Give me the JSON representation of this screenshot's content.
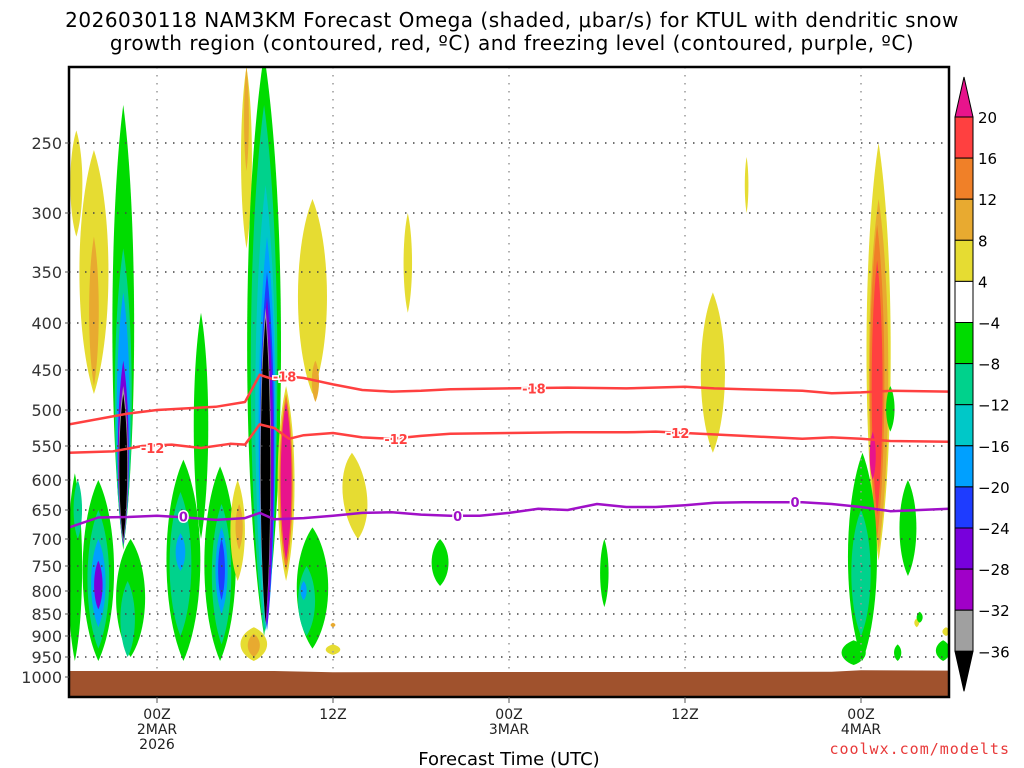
{
  "chart_data": {
    "type": "heatmap",
    "title_line1": "2026030118 NAM3KM Forecast Omega (shaded, μbar/s) for KTUL with dendritic snow",
    "title_line2": "growth region (contoured, red, ºC) and freezing level (contoured, purple, ºC)",
    "xlabel": "Forecast Time (UTC)",
    "ylabel": "",
    "credit": "coolwx.com/modelts",
    "x_range_hours": [
      -6,
      54
    ],
    "x_ticks": [
      {
        "hour": 0,
        "lines": [
          "00Z",
          "2MAR",
          "2026"
        ]
      },
      {
        "hour": 12,
        "lines": [
          "12Z"
        ]
      },
      {
        "hour": 24,
        "lines": [
          "00Z",
          "3MAR"
        ]
      },
      {
        "hour": 36,
        "lines": [
          "12Z"
        ]
      },
      {
        "hour": 48,
        "lines": [
          "00Z",
          "4MAR"
        ]
      }
    ],
    "y_axis": "pressure (hPa), inverted",
    "y_range": [
      190,
      1030
    ],
    "y_ticks": [
      250,
      300,
      350,
      400,
      450,
      500,
      550,
      600,
      650,
      700,
      750,
      800,
      850,
      900,
      950,
      1000
    ],
    "grid": "dotted",
    "colorbar": {
      "levels": [
        20,
        16,
        12,
        8,
        4,
        -4,
        -8,
        -12,
        -16,
        -20,
        -24,
        -28,
        -32,
        -36
      ],
      "bins": [
        {
          "range": ">20",
          "color": "#e8148c"
        },
        {
          "range": "16 to 20",
          "color": "#ff4040"
        },
        {
          "range": "12 to 16",
          "color": "#f08028"
        },
        {
          "range": "8 to 12",
          "color": "#e8aa30"
        },
        {
          "range": "4 to 8",
          "color": "#e6dc32"
        },
        {
          "range": "-4 to 4",
          "color": "#ffffff"
        },
        {
          "range": "-8 to -4",
          "color": "#00dc00"
        },
        {
          "range": "-12 to -8",
          "color": "#00d28c"
        },
        {
          "range": "-16 to -12",
          "color": "#00c8c8"
        },
        {
          "range": "-20 to -16",
          "color": "#00a0ff"
        },
        {
          "range": "-24 to -20",
          "color": "#1e3cff"
        },
        {
          "range": "-28 to -24",
          "color": "#7800dc"
        },
        {
          "range": "-32 to -28",
          "color": "#a000c8"
        },
        {
          "range": "-36 to -32",
          "color": "#a0a0a0"
        },
        {
          "range": "<-36",
          "color": "#000000"
        }
      ]
    },
    "contours": [
      {
        "name": "minus-18C",
        "label": "-18",
        "color": "#ff4040",
        "points": [
          [
            -6,
            520
          ],
          [
            -2,
            505
          ],
          [
            0,
            500
          ],
          [
            2,
            498
          ],
          [
            4,
            496
          ],
          [
            6,
            490
          ],
          [
            7,
            456
          ],
          [
            8,
            462
          ],
          [
            9,
            458
          ],
          [
            10,
            460
          ],
          [
            12,
            468
          ],
          [
            14,
            475
          ],
          [
            16,
            477
          ],
          [
            18,
            476
          ],
          [
            20,
            474
          ],
          [
            24,
            473
          ],
          [
            28,
            472
          ],
          [
            32,
            473
          ],
          [
            36,
            471
          ],
          [
            38,
            473
          ],
          [
            40,
            474
          ],
          [
            44,
            476
          ],
          [
            46,
            479
          ],
          [
            48,
            478
          ],
          [
            50,
            476
          ],
          [
            54,
            477
          ]
        ],
        "label_positions": [
          [
            8.7,
            458
          ],
          [
            25.7,
            473
          ]
        ]
      },
      {
        "name": "minus-12C",
        "label": "-12",
        "color": "#ff4040",
        "points": [
          [
            -6,
            560
          ],
          [
            -3,
            558
          ],
          [
            -1,
            550
          ],
          [
            1,
            548
          ],
          [
            3,
            553
          ],
          [
            5,
            547
          ],
          [
            6,
            548
          ],
          [
            7,
            520
          ],
          [
            8,
            525
          ],
          [
            9,
            540
          ],
          [
            10,
            535
          ],
          [
            12,
            532
          ],
          [
            14,
            538
          ],
          [
            16,
            540
          ],
          [
            18,
            536
          ],
          [
            20,
            533
          ],
          [
            24,
            532
          ],
          [
            28,
            531
          ],
          [
            32,
            531
          ],
          [
            34,
            530
          ],
          [
            36,
            532
          ],
          [
            40,
            536
          ],
          [
            44,
            540
          ],
          [
            46,
            538
          ],
          [
            48,
            540
          ],
          [
            50,
            543
          ],
          [
            54,
            544
          ]
        ],
        "label_positions": [
          [
            -0.3,
            553
          ],
          [
            16.3,
            540
          ],
          [
            35.5,
            532
          ]
        ]
      },
      {
        "name": "freezing-level-0C",
        "label": "0",
        "color": "#a010c8",
        "points": [
          [
            -6,
            680
          ],
          [
            -4,
            663
          ],
          [
            -2,
            662
          ],
          [
            0,
            660
          ],
          [
            2,
            663
          ],
          [
            4,
            667
          ],
          [
            6,
            664
          ],
          [
            7,
            655
          ],
          [
            8,
            666
          ],
          [
            10,
            664
          ],
          [
            12,
            660
          ],
          [
            14,
            655
          ],
          [
            16,
            654
          ],
          [
            18,
            658
          ],
          [
            20,
            660
          ],
          [
            22,
            660
          ],
          [
            24,
            655
          ],
          [
            26,
            648
          ],
          [
            28,
            650
          ],
          [
            30,
            640
          ],
          [
            32,
            645
          ],
          [
            34,
            645
          ],
          [
            36,
            642
          ],
          [
            38,
            638
          ],
          [
            40,
            637
          ],
          [
            44,
            637
          ],
          [
            46,
            640
          ],
          [
            48,
            645
          ],
          [
            50,
            652
          ],
          [
            52,
            650
          ],
          [
            54,
            648
          ]
        ],
        "label_positions": [
          [
            1.8,
            661
          ],
          [
            20.5,
            660
          ],
          [
            43.5,
            637
          ]
        ]
      }
    ],
    "omega_features": [
      {
        "desc": "ascent column near 22Z 1MAR",
        "hour_range": [
          -3.5,
          -1
        ],
        "pressure_range": [
          220,
          700
        ],
        "min_value": "<-36",
        "core_pressure_range": [
          480,
          700
        ]
      },
      {
        "desc": "ascent column near 07Z 2MAR",
        "hour_range": [
          6,
          8.5
        ],
        "pressure_range": [
          190,
          890
        ],
        "min_value": "<-36",
        "core_pressure_range": [
          395,
          870
        ]
      },
      {
        "desc": "descent column near 08Z 2MAR",
        "hour_range": [
          8,
          9
        ],
        "pressure_range": [
          490,
          750
        ],
        "max_value": ">20"
      },
      {
        "desc": "descent column near 02Z 4MAR",
        "hour_range": [
          49,
          51
        ],
        "pressure_range": [
          250,
          750
        ],
        "max_value": ">20"
      },
      {
        "desc": "weak descent near 15Z 3MAR",
        "hour_range": [
          37,
          39
        ],
        "pressure_range": [
          370,
          560
        ],
        "max_value": "4 to 8"
      },
      {
        "desc": "low-level ascent 20Z-04Z",
        "hour_range": [
          -6,
          4.5
        ],
        "pressure_range": [
          590,
          960
        ],
        "min_value": "-28 to -24"
      }
    ],
    "terrain_surface_hPa": 985
  }
}
